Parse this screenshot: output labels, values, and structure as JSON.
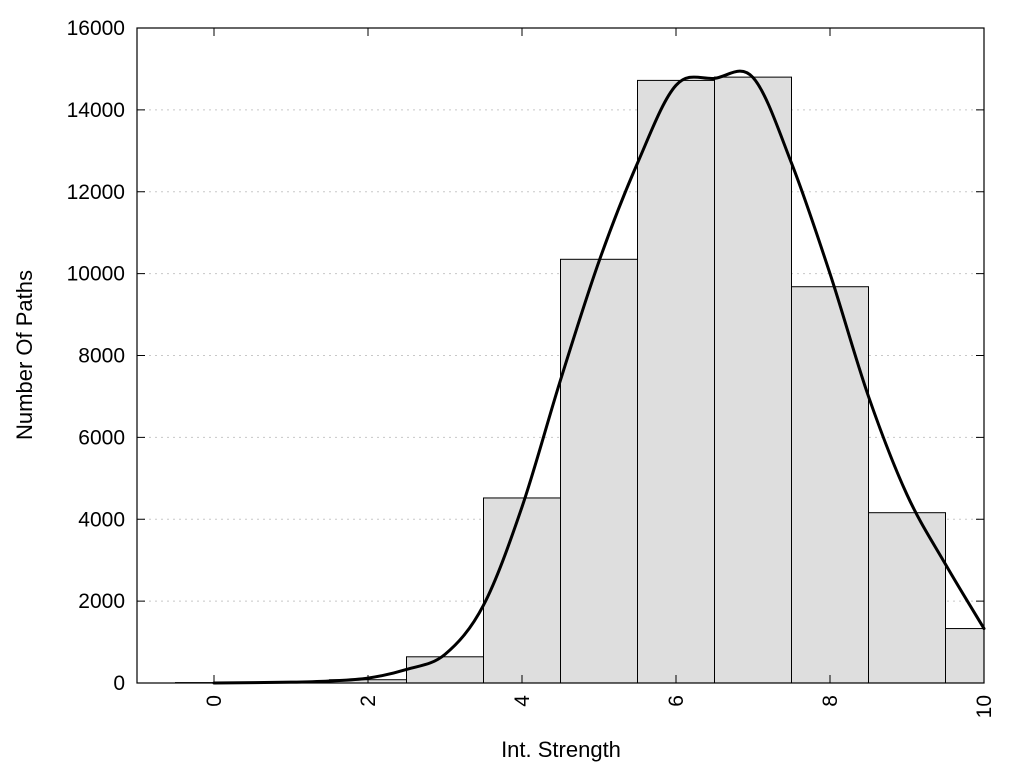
{
  "chart_data": {
    "type": "bar",
    "xlabel": "Int. Strength",
    "ylabel": "Number Of Paths",
    "xlim": [
      -1,
      10
    ],
    "ylim": [
      0,
      16000
    ],
    "grid": "horizontal dotted",
    "x_ticks": [
      0,
      2,
      4,
      6,
      8,
      10
    ],
    "y_ticks": [
      0,
      2000,
      4000,
      6000,
      8000,
      10000,
      12000,
      14000,
      16000
    ],
    "bar_width": 1,
    "bars": [
      {
        "x": 0,
        "value": 10
      },
      {
        "x": 1,
        "value": 20
      },
      {
        "x": 2,
        "value": 80
      },
      {
        "x": 3,
        "value": 640
      },
      {
        "x": 4,
        "value": 4520
      },
      {
        "x": 5,
        "value": 10350
      },
      {
        "x": 6,
        "value": 14720
      },
      {
        "x": 7,
        "value": 14800
      },
      {
        "x": 8,
        "value": 9680
      },
      {
        "x": 9,
        "value": 4160
      },
      {
        "x": 10,
        "value": 1330
      }
    ],
    "curve": {
      "x": [
        0,
        1,
        1.5,
        2,
        2.5,
        3,
        3.5,
        4,
        4.5,
        5,
        5.5,
        6,
        6.5,
        7,
        7.5,
        8,
        8.5,
        9,
        9.5,
        10
      ],
      "y": [
        0,
        20,
        50,
        120,
        330,
        700,
        1900,
        4300,
        7400,
        10300,
        12700,
        14600,
        14770,
        14790,
        12700,
        10000,
        7000,
        4600,
        2900,
        1330
      ]
    },
    "colors": {
      "bar_fill": "#dedede",
      "bar_stroke": "#000000",
      "curve": "#000000"
    }
  }
}
